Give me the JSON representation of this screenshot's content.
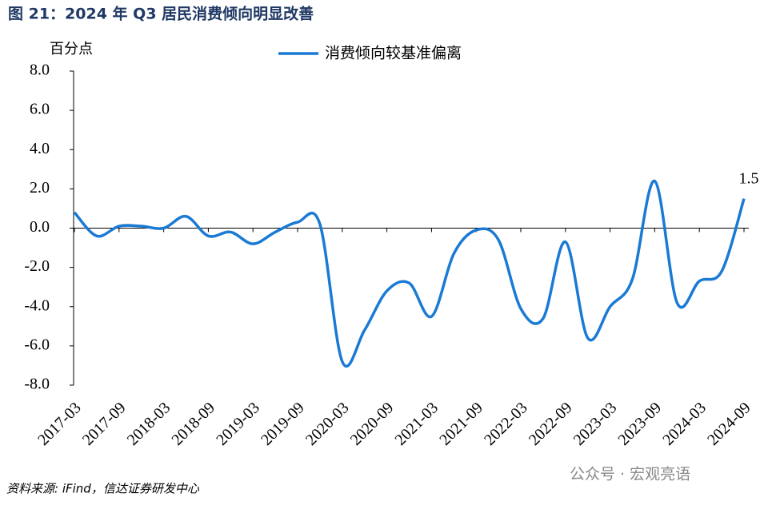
{
  "chart_data": {
    "type": "line",
    "title": "图 21：2024 年 Q3 居民消费倾向明显改善",
    "y_label": "百分点",
    "source": "资料来源: iFind，信达证券研发中心",
    "watermark": "公众号 · 宏观亮语",
    "categories": [
      "2017-03",
      null,
      "2017-09",
      null,
      "2018-03",
      null,
      "2018-09",
      null,
      "2019-03",
      null,
      "2019-09",
      null,
      "2020-03",
      null,
      "2020-09",
      null,
      "2021-03",
      null,
      "2021-09",
      null,
      "2022-03",
      null,
      "2022-09",
      null,
      "2023-03",
      null,
      "2023-09",
      null,
      "2024-03",
      null,
      "2024-09"
    ],
    "series": [
      {
        "name": "消费倾向较基准偏离",
        "color": "#1a7ad4",
        "values": [
          0.8,
          -0.4,
          0.1,
          0.1,
          0.0,
          0.6,
          -0.4,
          -0.2,
          -0.8,
          -0.2,
          0.3,
          0.2,
          -6.8,
          -5.2,
          -3.2,
          -2.8,
          -4.5,
          -1.3,
          -0.1,
          -0.6,
          -4.1,
          -4.6,
          -0.7,
          -5.6,
          -4.0,
          -2.6,
          2.4,
          -3.8,
          -2.7,
          -2.2,
          1.5
        ]
      }
    ],
    "ylim": [
      -8,
      8
    ],
    "yticks": [
      {
        "value": -8,
        "label": "-8.0"
      },
      {
        "value": -6,
        "label": "-6.0"
      },
      {
        "value": -4,
        "label": "-4.0"
      },
      {
        "value": -2,
        "label": "-2.0"
      },
      {
        "value": 0,
        "label": "0.0"
      },
      {
        "value": 2,
        "label": "2.0"
      },
      {
        "value": 4,
        "label": "4.0"
      },
      {
        "value": 6,
        "label": "6.0"
      },
      {
        "value": 8,
        "label": "8.0"
      }
    ],
    "grid": false,
    "legend": "top"
  }
}
